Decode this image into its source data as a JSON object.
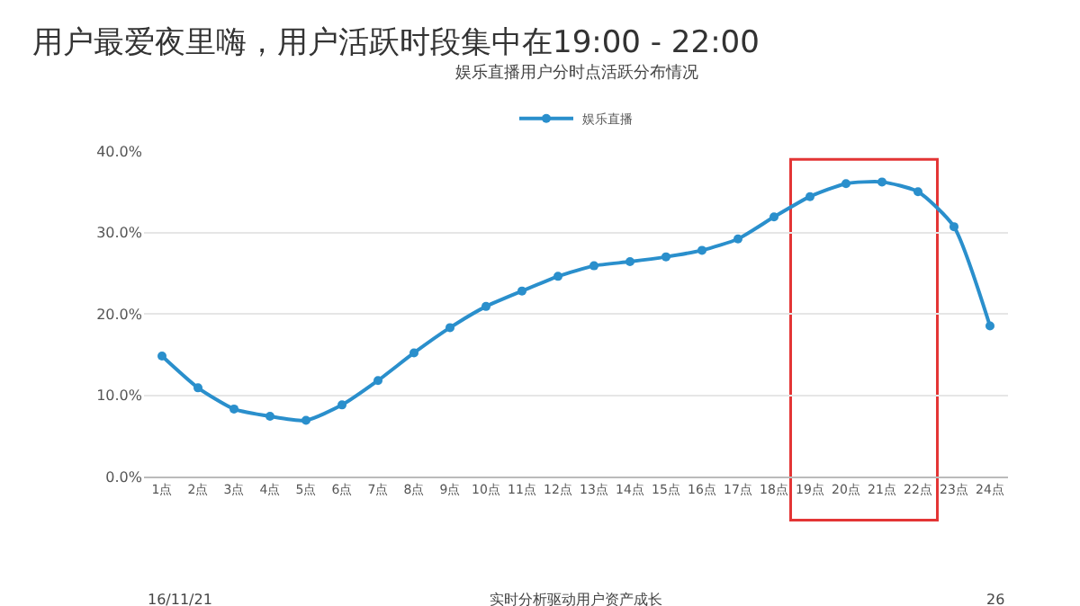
{
  "chart_data": {
    "type": "line",
    "title": "用户最爱夜里嗨，用户活跃时段集中在19:00 - 22:00",
    "subtitle": "娱乐直播用户分时点活跃分布情况",
    "categories": [
      "1点",
      "2点",
      "3点",
      "4点",
      "5点",
      "6点",
      "7点",
      "8点",
      "9点",
      "10点",
      "11点",
      "12点",
      "13点",
      "14点",
      "15点",
      "16点",
      "17点",
      "18点",
      "19点",
      "20点",
      "21点",
      "22点",
      "23点",
      "24点"
    ],
    "series": [
      {
        "name": "娱乐直播",
        "color": "#2a8fcc",
        "values": [
          14.8,
          10.9,
          8.3,
          7.4,
          6.9,
          8.8,
          11.8,
          15.2,
          18.3,
          20.9,
          22.8,
          24.6,
          25.9,
          26.4,
          27.0,
          27.8,
          29.2,
          31.9,
          34.4,
          36.0,
          36.2,
          35.0,
          30.7,
          18.5
        ]
      }
    ],
    "ylim": [
      0,
      40
    ],
    "yticks": [
      {
        "value": 0,
        "label": "0.0%"
      },
      {
        "value": 10,
        "label": "10.0%"
      },
      {
        "value": 20,
        "label": "20.0%"
      },
      {
        "value": 30,
        "label": "30.0%"
      },
      {
        "value": 40,
        "label": "40.0%"
      }
    ],
    "grid": "y",
    "legend": "top",
    "marker": "circle",
    "line_style": "solid",
    "bands": [
      {
        "axis": "x",
        "from": "19点",
        "to": "22点",
        "color": "#e02020"
      }
    ],
    "annotations": [
      "16/11/21",
      "实时分析驱动用户资产成长",
      "26"
    ]
  }
}
